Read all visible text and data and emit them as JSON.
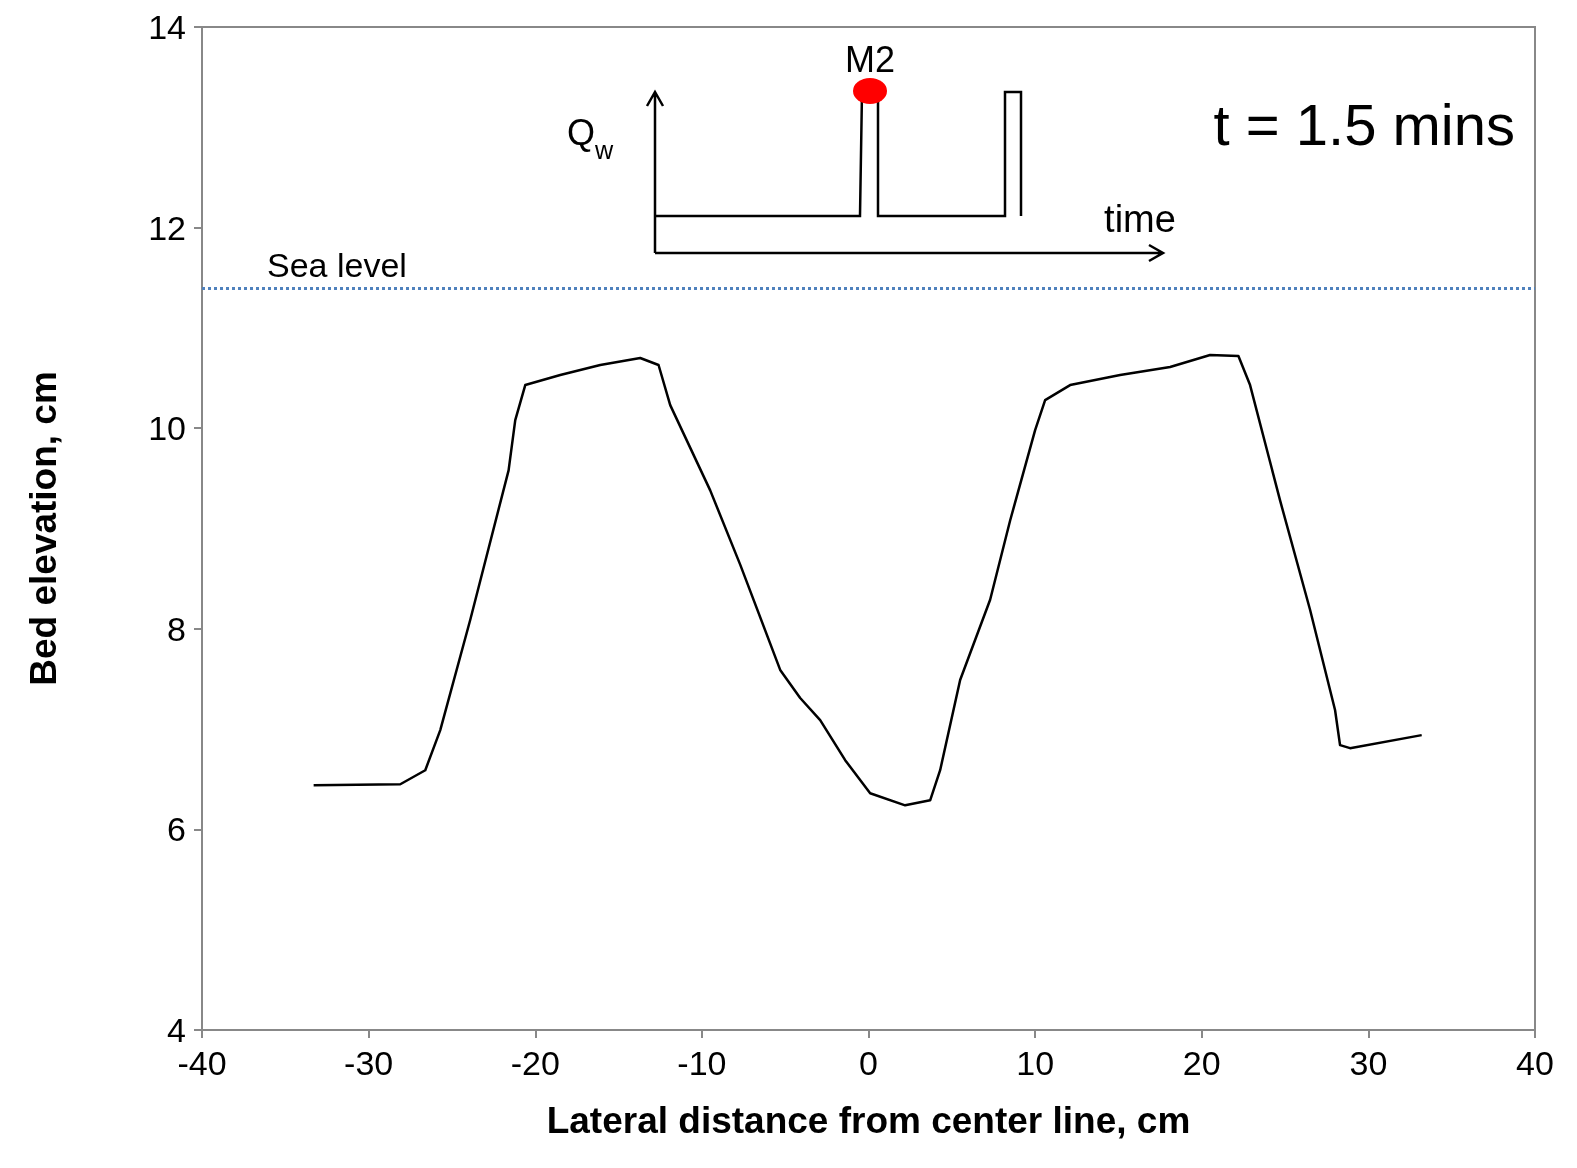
{
  "chart_data": {
    "type": "line",
    "xlabel": "Lateral distance from center line, cm",
    "ylabel": "Bed elevation, cm",
    "x": [
      -33.3,
      -28.1,
      -26.6,
      -25.7,
      -23.9,
      -21.6,
      -21.2,
      -20.6,
      -18.5,
      -16.1,
      -13.7,
      -12.6,
      -11.9,
      -9.5,
      -7.7,
      -5.3,
      -4.1,
      -2.9,
      -1.4,
      0.1,
      2.2,
      3.7,
      4.3,
      5.5,
      7.3,
      8.5,
      10.0,
      10.6,
      12.1,
      15.1,
      18.1,
      20.5,
      22.2,
      22.9,
      24.7,
      26.5,
      28.0,
      28.3,
      28.9,
      33.2
    ],
    "series": [
      {
        "color": "#000000",
        "values": [
          6.44,
          6.45,
          6.59,
          6.99,
          8.09,
          9.58,
          10.08,
          10.43,
          10.53,
          10.63,
          10.7,
          10.63,
          10.23,
          9.38,
          8.64,
          7.59,
          7.31,
          7.09,
          6.69,
          6.36,
          6.24,
          6.29,
          6.59,
          7.49,
          8.29,
          9.08,
          9.98,
          10.28,
          10.43,
          10.53,
          10.61,
          10.73,
          10.72,
          10.43,
          9.28,
          8.19,
          7.19,
          6.84,
          6.81,
          6.94
        ]
      }
    ],
    "xlim": [
      -40,
      40
    ],
    "xticks": [
      -40,
      -30,
      -20,
      -10,
      0,
      10,
      20,
      30,
      40
    ],
    "ylim": [
      4,
      14
    ],
    "yticks": [
      4,
      6,
      8,
      10,
      12,
      14
    ],
    "ref_lines": [
      {
        "axis": "y",
        "value": 11.4,
        "label": "Sea level",
        "color": "#4f81bd",
        "line_style": "dotted"
      }
    ],
    "annotations": [
      "t = 1.5 mins",
      "Q$_{w}$",
      "time",
      "M2"
    ],
    "grid": false,
    "marker": "none",
    "line_style": "solid"
  }
}
